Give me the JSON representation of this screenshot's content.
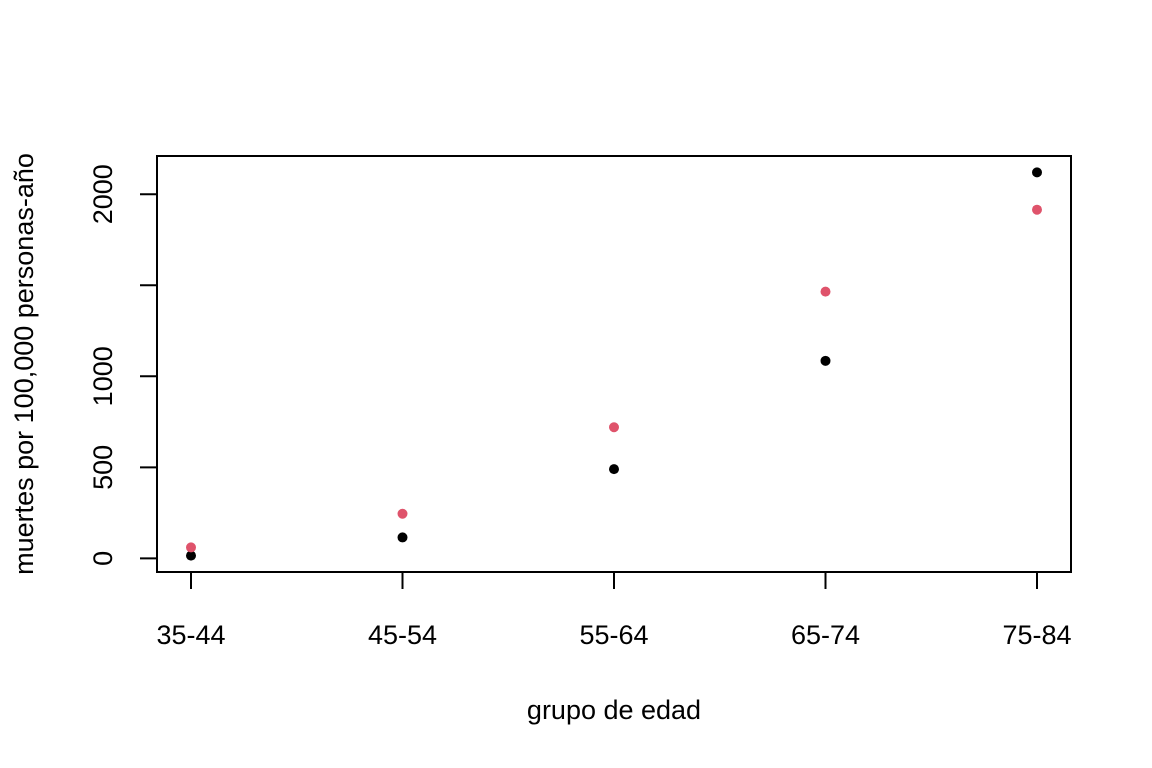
{
  "chart_data": {
    "type": "scatter",
    "xlabel": "grupo de edad",
    "ylabel": "muertes por 100,000 personas-año",
    "categories": [
      "35-44",
      "45-54",
      "55-64",
      "65-74",
      "75-84"
    ],
    "ylim": [
      -75,
      2210
    ],
    "yticks": [
      0,
      500,
      1000,
      1500,
      2000
    ],
    "ytick_labels": [
      "0",
      "500",
      "1000",
      "",
      "2000"
    ],
    "grid": false,
    "legend": "none",
    "series": [
      {
        "color": "#000000",
        "values": [
          15,
          115,
          490,
          1085,
          2120
        ]
      },
      {
        "color": "#df536b",
        "values": [
          60,
          245,
          720,
          1465,
          1915
        ]
      }
    ]
  }
}
